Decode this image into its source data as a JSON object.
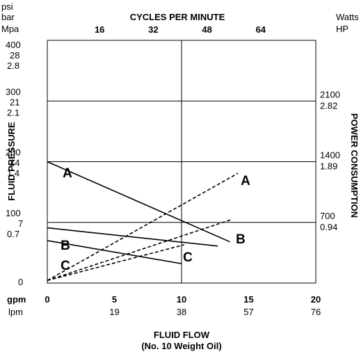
{
  "chart_data": {
    "type": "line",
    "title": "CYCLES PER MINUTE",
    "xlabel": "FLUID FLOW",
    "xlabel_sub": "(No. 10 Weight Oil)",
    "ylabel_left": "FLUID PRESSURE",
    "ylabel_right": "POWER CONSUMPTION",
    "left_units": [
      "psi",
      "bar",
      "Mpa"
    ],
    "right_units": [
      "Watts",
      "HP"
    ],
    "x_units": [
      "gpm",
      "lpm"
    ],
    "x_ticks_gpm": [
      "0",
      "5",
      "10",
      "15",
      "20"
    ],
    "x_ticks_lpm": [
      "19",
      "38",
      "57",
      "76"
    ],
    "top_ticks": [
      "16",
      "32",
      "48",
      "64"
    ],
    "left_ticks": [
      {
        "psi": "400",
        "bar": "28",
        "mpa": "2.8",
        "value_psi": 400
      },
      {
        "psi": "300",
        "bar": "21",
        "mpa": "2.1",
        "value_psi": 300
      },
      {
        "psi": "200",
        "bar": "14",
        "mpa": "1.4",
        "value_psi": 200
      },
      {
        "psi": "100",
        "bar": "7",
        "mpa": "0.7",
        "value_psi": 100
      },
      {
        "psi": "0",
        "bar": "",
        "mpa": "",
        "value_psi": 0
      }
    ],
    "right_ticks": [
      {
        "watts": "2100",
        "hp": "2.82",
        "value_watts": 2100
      },
      {
        "watts": "1400",
        "hp": "1.89",
        "value_watts": 1400
      },
      {
        "watts": "700",
        "hp": "0.94",
        "value_watts": 700
      }
    ],
    "xlim": [
      0,
      20
    ],
    "ylim_psi": [
      0,
      400
    ],
    "ylim_watts": [
      0,
      2800
    ],
    "grid": true,
    "series": [
      {
        "name": "A",
        "axis": "pressure",
        "style": "solid",
        "x": [
          0,
          13.6
        ],
        "y": [
          200,
          68
        ]
      },
      {
        "name": "B",
        "axis": "pressure",
        "style": "solid",
        "x": [
          0,
          12.7
        ],
        "y": [
          91,
          61
        ]
      },
      {
        "name": "C",
        "axis": "pressure",
        "style": "solid",
        "x": [
          0,
          10
        ],
        "y": [
          70,
          32
        ]
      },
      {
        "name": "A",
        "axis": "power",
        "style": "dashed",
        "x": [
          0,
          14.2
        ],
        "y": [
          30,
          1267
        ]
      },
      {
        "name": "B",
        "axis": "power",
        "style": "dashed",
        "x": [
          0,
          13.7
        ],
        "y": [
          30,
          732
        ]
      },
      {
        "name": "C",
        "axis": "power",
        "style": "dashed",
        "x": [
          0,
          10.2
        ],
        "y": [
          30,
          442
        ]
      }
    ],
    "series_labels": [
      "A",
      "B",
      "C",
      "A",
      "B",
      "C"
    ]
  }
}
